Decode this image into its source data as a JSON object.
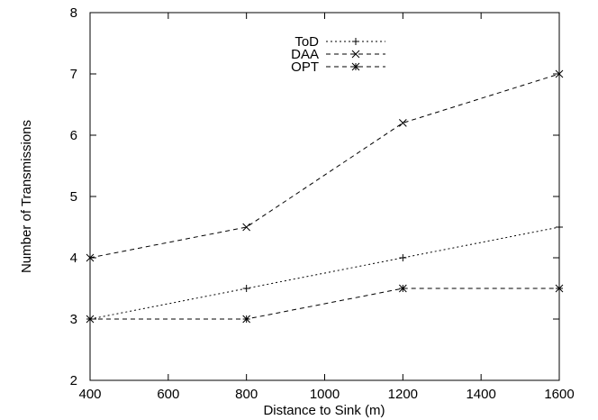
{
  "chart_data": {
    "type": "line",
    "title": "",
    "xlabel": "Distance to Sink (m)",
    "ylabel": "Number of Transmissions",
    "xlim": [
      400,
      1600
    ],
    "ylim": [
      2,
      8
    ],
    "x": [
      400,
      800,
      1200,
      1600
    ],
    "xticks": [
      "400",
      "600",
      "800",
      "1000",
      "1200",
      "1400",
      "1600"
    ],
    "yticks": [
      "2",
      "3",
      "4",
      "5",
      "6",
      "7",
      "8"
    ],
    "grid": false,
    "legend_position": "top-center",
    "series": [
      {
        "name": "ToD",
        "marker": "plus",
        "line_style": "dotted",
        "values": [
          3.0,
          3.5,
          4.0,
          4.5
        ]
      },
      {
        "name": "DAA",
        "marker": "cross",
        "line_style": "dashed",
        "values": [
          4.0,
          4.5,
          6.2,
          7.0
        ]
      },
      {
        "name": "OPT",
        "marker": "star",
        "line_style": "dashed",
        "values": [
          3.0,
          3.0,
          3.5,
          3.5
        ]
      }
    ]
  }
}
